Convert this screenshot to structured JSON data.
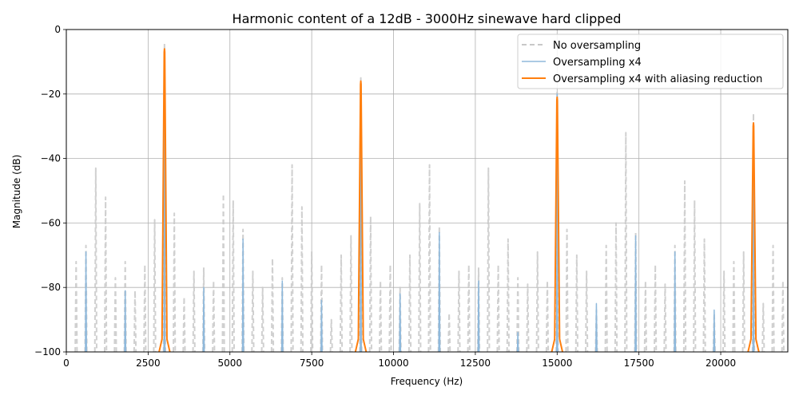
{
  "chart_data": {
    "type": "line",
    "title": "Harmonic content of a 12dB - 3000Hz sinewave hard clipped",
    "xlabel": "Frequency (Hz)",
    "ylabel": "Magnitude (dB)",
    "xlim": [
      0,
      22050
    ],
    "ylim": [
      -100,
      0
    ],
    "xticks": [
      0,
      2500,
      5000,
      7500,
      10000,
      12500,
      15000,
      17500,
      20000
    ],
    "xtick_labels": [
      "0",
      "2500",
      "5000",
      "7500",
      "10000",
      "12500",
      "15000",
      "17500",
      "20000"
    ],
    "yticks": [
      0,
      -20,
      -40,
      -60,
      -80,
      -100
    ],
    "ytick_labels": [
      "0",
      "−20",
      "−40",
      "−60",
      "−80",
      "−100"
    ],
    "grid": true,
    "legend_position": "top-right",
    "series": [
      {
        "name": "No oversampling",
        "color": "#c8c8c8",
        "style": "dashed",
        "peaks": [
          {
            "x": 300,
            "y": -72
          },
          {
            "x": 600,
            "y": -67
          },
          {
            "x": 900,
            "y": -43
          },
          {
            "x": 1200,
            "y": -52
          },
          {
            "x": 1500,
            "y": -77
          },
          {
            "x": 1800,
            "y": -72
          },
          {
            "x": 2100,
            "y": -81
          },
          {
            "x": 2400,
            "y": -73
          },
          {
            "x": 2700,
            "y": -59
          },
          {
            "x": 3000,
            "y": -4
          },
          {
            "x": 3300,
            "y": -57
          },
          {
            "x": 3600,
            "y": -83
          },
          {
            "x": 3900,
            "y": -75
          },
          {
            "x": 4200,
            "y": -74
          },
          {
            "x": 4500,
            "y": -78
          },
          {
            "x": 4800,
            "y": -51
          },
          {
            "x": 5100,
            "y": -53
          },
          {
            "x": 5400,
            "y": -62
          },
          {
            "x": 5700,
            "y": -75
          },
          {
            "x": 6000,
            "y": -80
          },
          {
            "x": 6300,
            "y": -71
          },
          {
            "x": 6600,
            "y": -77
          },
          {
            "x": 6900,
            "y": -42
          },
          {
            "x": 7200,
            "y": -55
          },
          {
            "x": 7500,
            "y": -69
          },
          {
            "x": 7800,
            "y": -73
          },
          {
            "x": 8100,
            "y": -90
          },
          {
            "x": 8400,
            "y": -70
          },
          {
            "x": 8700,
            "y": -64
          },
          {
            "x": 9000,
            "y": -15
          },
          {
            "x": 9300,
            "y": -58
          },
          {
            "x": 9600,
            "y": -78
          },
          {
            "x": 9900,
            "y": -73
          },
          {
            "x": 10200,
            "y": -80
          },
          {
            "x": 10500,
            "y": -70
          },
          {
            "x": 10800,
            "y": -54
          },
          {
            "x": 11100,
            "y": -42
          },
          {
            "x": 11400,
            "y": -61
          },
          {
            "x": 11700,
            "y": -88
          },
          {
            "x": 12000,
            "y": -75
          },
          {
            "x": 12300,
            "y": -73
          },
          {
            "x": 12600,
            "y": -74
          },
          {
            "x": 12900,
            "y": -43
          },
          {
            "x": 13200,
            "y": -73
          },
          {
            "x": 13500,
            "y": -65
          },
          {
            "x": 13800,
            "y": -77
          },
          {
            "x": 14100,
            "y": -79
          },
          {
            "x": 14400,
            "y": -69
          },
          {
            "x": 14700,
            "y": -78
          },
          {
            "x": 15000,
            "y": -19
          },
          {
            "x": 15300,
            "y": -62
          },
          {
            "x": 15600,
            "y": -70
          },
          {
            "x": 15900,
            "y": -75
          },
          {
            "x": 16200,
            "y": -87
          },
          {
            "x": 16500,
            "y": -67
          },
          {
            "x": 16800,
            "y": -60
          },
          {
            "x": 17100,
            "y": -32
          },
          {
            "x": 17400,
            "y": -63
          },
          {
            "x": 17700,
            "y": -78
          },
          {
            "x": 18000,
            "y": -73
          },
          {
            "x": 18300,
            "y": -79
          },
          {
            "x": 18600,
            "y": -67
          },
          {
            "x": 18900,
            "y": -47
          },
          {
            "x": 19200,
            "y": -53
          },
          {
            "x": 19500,
            "y": -65
          },
          {
            "x": 19800,
            "y": -88
          },
          {
            "x": 20100,
            "y": -75
          },
          {
            "x": 20400,
            "y": -72
          },
          {
            "x": 20700,
            "y": -69
          },
          {
            "x": 21000,
            "y": -26
          },
          {
            "x": 21300,
            "y": -85
          },
          {
            "x": 21600,
            "y": -67
          },
          {
            "x": 21900,
            "y": -78
          }
        ]
      },
      {
        "name": "Oversampling x4",
        "color": "#8fb9dc",
        "style": "solid",
        "peaks": [
          {
            "x": 600,
            "y": -69
          },
          {
            "x": 1800,
            "y": -81
          },
          {
            "x": 3000,
            "y": -6
          },
          {
            "x": 4200,
            "y": -80
          },
          {
            "x": 5400,
            "y": -65
          },
          {
            "x": 6600,
            "y": -78
          },
          {
            "x": 7800,
            "y": -84
          },
          {
            "x": 9000,
            "y": -16
          },
          {
            "x": 10200,
            "y": -82
          },
          {
            "x": 11400,
            "y": -63
          },
          {
            "x": 12600,
            "y": -78
          },
          {
            "x": 13800,
            "y": -94
          },
          {
            "x": 15000,
            "y": -20
          },
          {
            "x": 16200,
            "y": -85
          },
          {
            "x": 17400,
            "y": -64
          },
          {
            "x": 18600,
            "y": -69
          },
          {
            "x": 19800,
            "y": -87
          },
          {
            "x": 21000,
            "y": -29
          }
        ]
      },
      {
        "name": "Oversampling x4 with aliasing reduction",
        "color": "#ff7f0e",
        "style": "solid",
        "peaks": [
          {
            "x": 3000,
            "y": -6
          },
          {
            "x": 9000,
            "y": -16
          },
          {
            "x": 15000,
            "y": -21
          },
          {
            "x": 21000,
            "y": -29
          }
        ]
      }
    ]
  }
}
